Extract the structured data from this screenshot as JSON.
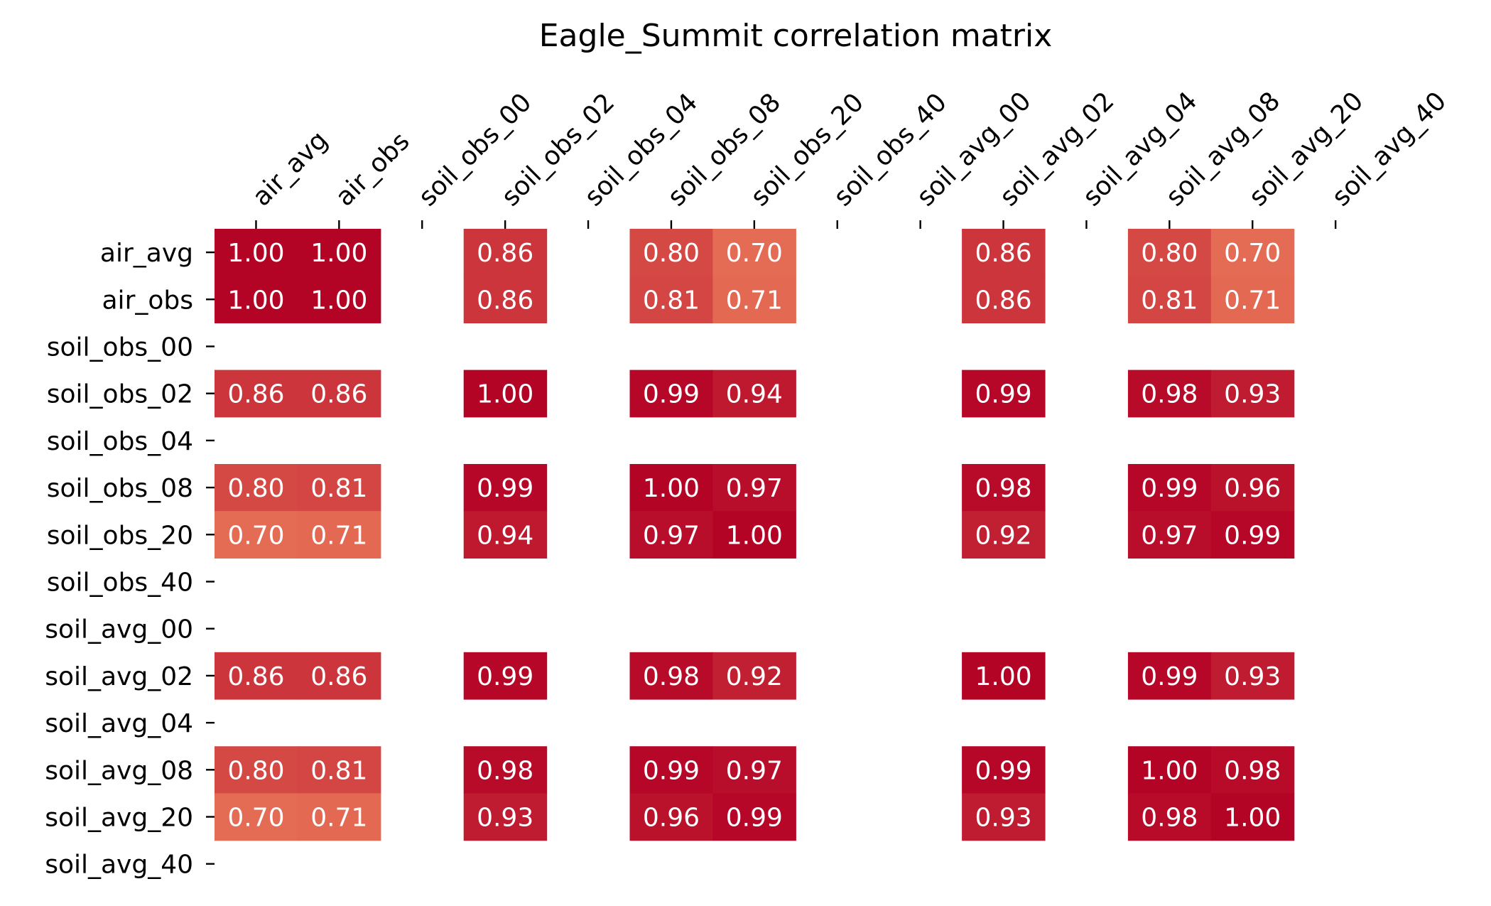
{
  "chart_data": {
    "type": "heatmap",
    "title": "Eagle_Summit correlation matrix",
    "labels": [
      "air_avg",
      "air_obs",
      "soil_obs_00",
      "soil_obs_02",
      "soil_obs_04",
      "soil_obs_08",
      "soil_obs_20",
      "soil_obs_40",
      "soil_avg_00",
      "soil_avg_02",
      "soil_avg_04",
      "soil_avg_08",
      "soil_avg_20",
      "soil_avg_40"
    ],
    "x_tick_position": "top",
    "x_tick_rotation_deg": 45,
    "colormap": "coolwarm",
    "vmin": -1,
    "vmax": 1,
    "annotation_format": "0.00",
    "colorbar": false,
    "matrix": [
      [
        1.0,
        1.0,
        null,
        0.86,
        null,
        0.8,
        0.7,
        null,
        null,
        0.86,
        null,
        0.8,
        0.7,
        null
      ],
      [
        1.0,
        1.0,
        null,
        0.86,
        null,
        0.81,
        0.71,
        null,
        null,
        0.86,
        null,
        0.81,
        0.71,
        null
      ],
      [
        null,
        null,
        null,
        null,
        null,
        null,
        null,
        null,
        null,
        null,
        null,
        null,
        null,
        null
      ],
      [
        0.86,
        0.86,
        null,
        1.0,
        null,
        0.99,
        0.94,
        null,
        null,
        0.99,
        null,
        0.98,
        0.93,
        null
      ],
      [
        null,
        null,
        null,
        null,
        null,
        null,
        null,
        null,
        null,
        null,
        null,
        null,
        null,
        null
      ],
      [
        0.8,
        0.81,
        null,
        0.99,
        null,
        1.0,
        0.97,
        null,
        null,
        0.98,
        null,
        0.99,
        0.96,
        null
      ],
      [
        0.7,
        0.71,
        null,
        0.94,
        null,
        0.97,
        1.0,
        null,
        null,
        0.92,
        null,
        0.97,
        0.99,
        null
      ],
      [
        null,
        null,
        null,
        null,
        null,
        null,
        null,
        null,
        null,
        null,
        null,
        null,
        null,
        null
      ],
      [
        null,
        null,
        null,
        null,
        null,
        null,
        null,
        null,
        null,
        null,
        null,
        null,
        null,
        null
      ],
      [
        0.86,
        0.86,
        null,
        0.99,
        null,
        0.98,
        0.92,
        null,
        null,
        1.0,
        null,
        0.99,
        0.93,
        null
      ],
      [
        null,
        null,
        null,
        null,
        null,
        null,
        null,
        null,
        null,
        null,
        null,
        null,
        null,
        null
      ],
      [
        0.8,
        0.81,
        null,
        0.98,
        null,
        0.99,
        0.97,
        null,
        null,
        0.99,
        null,
        1.0,
        0.98,
        null
      ],
      [
        0.7,
        0.71,
        null,
        0.93,
        null,
        0.96,
        0.99,
        null,
        null,
        0.93,
        null,
        0.98,
        1.0,
        null
      ],
      [
        null,
        null,
        null,
        null,
        null,
        null,
        null,
        null,
        null,
        null,
        null,
        null,
        null,
        null
      ]
    ]
  }
}
